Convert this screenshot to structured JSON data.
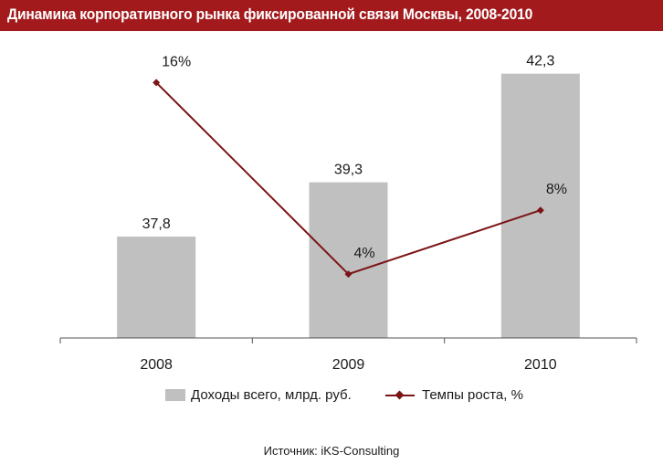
{
  "title": "Динамика корпоративного рынка фиксированной связи Москвы, 2008-2010",
  "source": "Источник: iKS-Consulting",
  "colors": {
    "title_bg": "#a31a1d",
    "bar": "#c0c0c0",
    "line": "#7b1416"
  },
  "chart_data": {
    "type": "bar",
    "categories": [
      "2008",
      "2009",
      "2010"
    ],
    "series": [
      {
        "name": "Доходы всего, млрд. руб.",
        "type": "bar",
        "values": [
          37.8,
          39.3,
          42.3
        ],
        "labels": [
          "37,8",
          "39,3",
          "42,3"
        ],
        "axis": "primary"
      },
      {
        "name": "Темпы роста, %",
        "type": "line",
        "values": [
          16,
          4,
          8
        ],
        "labels": [
          "16%",
          "4%",
          "8%"
        ],
        "axis": "secondary"
      }
    ],
    "ylim": [
      35,
      43.2
    ],
    "y2lim": [
      0,
      18.6
    ],
    "grid": false,
    "legend": "bottom"
  }
}
